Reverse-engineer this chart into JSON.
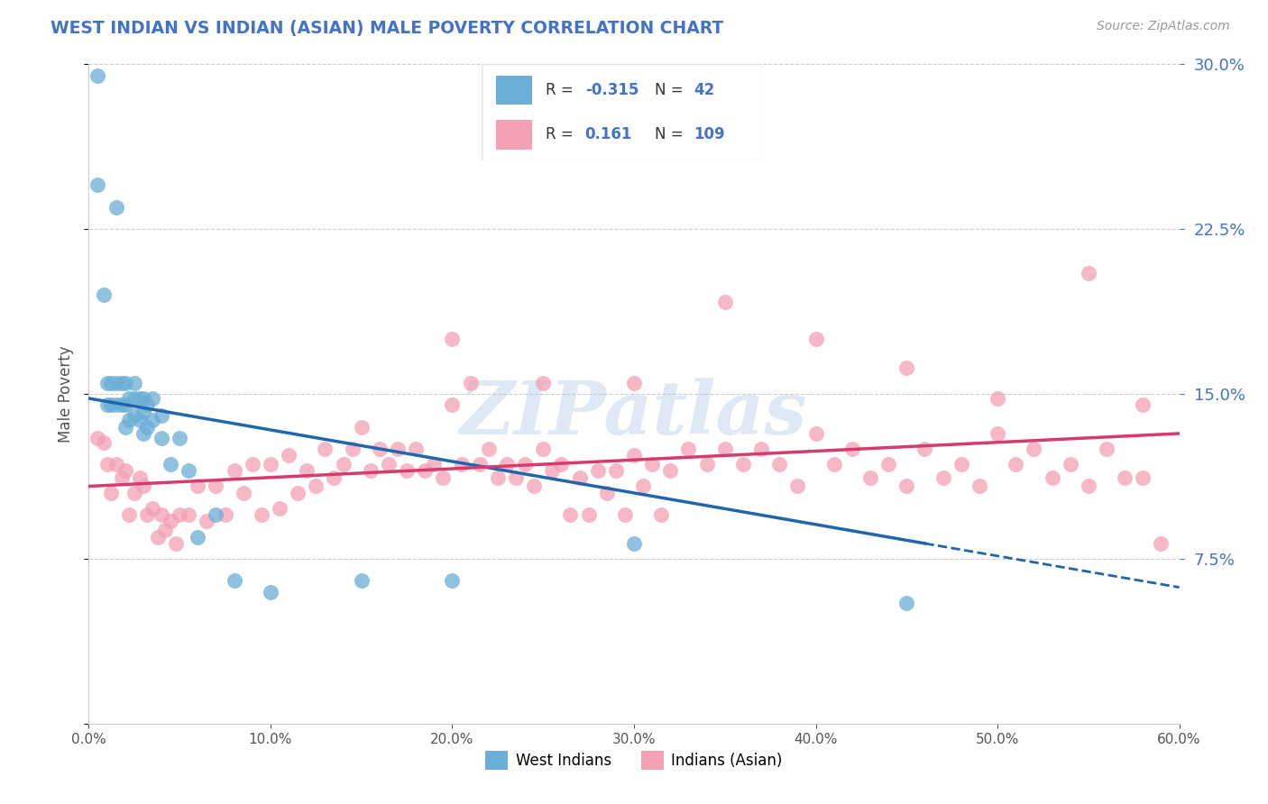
{
  "title": "WEST INDIAN VS INDIAN (ASIAN) MALE POVERTY CORRELATION CHART",
  "source_text": "Source: ZipAtlas.com",
  "ylabel": "Male Poverty",
  "xlim": [
    0,
    0.6
  ],
  "ylim": [
    0,
    0.3
  ],
  "blue_R": -0.315,
  "blue_N": 42,
  "pink_R": 0.161,
  "pink_N": 109,
  "blue_color": "#6baed6",
  "pink_color": "#f4a0b5",
  "blue_line_color": "#2166ac",
  "pink_line_color": "#d63b6e",
  "title_color": "#4472c4",
  "legend_text_color": "#4472c4",
  "watermark": "ZIPatlas",
  "background_color": "#ffffff",
  "grid_color": "#cccccc",
  "right_ytick_color": "#4472c4",
  "blue_line_start_x": 0.0,
  "blue_line_start_y": 0.148,
  "blue_line_end_x": 0.46,
  "blue_line_end_y": 0.082,
  "blue_line_dash_end_x": 0.6,
  "blue_line_dash_end_y": 0.062,
  "pink_line_start_x": 0.0,
  "pink_line_start_y": 0.108,
  "pink_line_end_x": 0.6,
  "pink_line_end_y": 0.132
}
